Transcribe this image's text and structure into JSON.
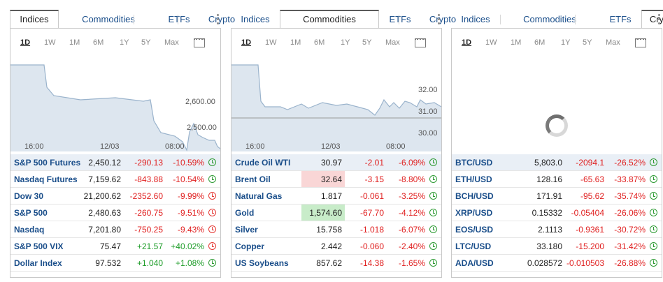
{
  "tabs": [
    "Indices",
    "Commodities",
    "ETFs",
    "Crypto"
  ],
  "periods": [
    "1D",
    "1W",
    "1M",
    "6M",
    "1Y",
    "5Y",
    "Max"
  ],
  "panels": [
    {
      "active_tab": "Indices",
      "chart": {
        "y_labels": [
          "2,600.00",
          "2,500.00"
        ],
        "x_labels": [
          "16:00",
          "12/03",
          "08:00"
        ]
      },
      "rows": [
        {
          "name": "S&P 500 Futures",
          "last": "2,450.12",
          "chg": "-290.13",
          "pct": "-10.59%",
          "dir": "neg",
          "status": "open"
        },
        {
          "name": "Nasdaq Futures",
          "last": "7,159.62",
          "chg": "-843.88",
          "pct": "-10.54%",
          "dir": "neg",
          "status": "open"
        },
        {
          "name": "Dow 30",
          "last": "21,200.62",
          "chg": "-2352.60",
          "pct": "-9.99%",
          "dir": "neg",
          "status": "closed"
        },
        {
          "name": "S&P 500",
          "last": "2,480.63",
          "chg": "-260.75",
          "pct": "-9.51%",
          "dir": "neg",
          "status": "closed"
        },
        {
          "name": "Nasdaq",
          "last": "7,201.80",
          "chg": "-750.25",
          "pct": "-9.43%",
          "dir": "neg",
          "status": "closed"
        },
        {
          "name": "S&P 500 VIX",
          "last": "75.47",
          "chg": "+21.57",
          "pct": "+40.02%",
          "dir": "pos",
          "status": "closed"
        },
        {
          "name": "Dollar Index",
          "last": "97.532",
          "chg": "+1.040",
          "pct": "+1.08%",
          "dir": "pos",
          "status": "open"
        }
      ]
    },
    {
      "active_tab": "Commodities",
      "chart": {
        "y_labels": [
          "32.00",
          "31.00",
          "30.00"
        ],
        "x_labels": [
          "16:00",
          "12/03",
          "08:00"
        ]
      },
      "rows": [
        {
          "name": "Crude Oil WTI",
          "last": "30.97",
          "chg": "-2.01",
          "pct": "-6.09%",
          "dir": "neg",
          "status": "open"
        },
        {
          "name": "Brent Oil",
          "last": "32.64",
          "chg": "-3.15",
          "pct": "-8.80%",
          "dir": "neg",
          "status": "open",
          "flash": "red"
        },
        {
          "name": "Natural Gas",
          "last": "1.817",
          "chg": "-0.061",
          "pct": "-3.25%",
          "dir": "neg",
          "status": "open"
        },
        {
          "name": "Gold",
          "last": "1,574.60",
          "chg": "-67.70",
          "pct": "-4.12%",
          "dir": "neg",
          "status": "open",
          "flash": "green"
        },
        {
          "name": "Silver",
          "last": "15.758",
          "chg": "-1.018",
          "pct": "-6.07%",
          "dir": "neg",
          "status": "open"
        },
        {
          "name": "Copper",
          "last": "2.442",
          "chg": "-0.060",
          "pct": "-2.40%",
          "dir": "neg",
          "status": "open"
        },
        {
          "name": "US Soybeans",
          "last": "857.62",
          "chg": "-14.38",
          "pct": "-1.65%",
          "dir": "neg",
          "status": "open"
        }
      ]
    },
    {
      "active_tab": "Crypto",
      "chart": {
        "y_labels": [],
        "x_labels": []
      },
      "rows": [
        {
          "name": "BTC/USD",
          "last": "5,803.0",
          "chg": "-2094.1",
          "pct": "-26.52%",
          "dir": "neg",
          "status": "open"
        },
        {
          "name": "ETH/USD",
          "last": "128.16",
          "chg": "-65.63",
          "pct": "-33.87%",
          "dir": "neg",
          "status": "open"
        },
        {
          "name": "BCH/USD",
          "last": "171.91",
          "chg": "-95.62",
          "pct": "-35.74%",
          "dir": "neg",
          "status": "open"
        },
        {
          "name": "XRP/USD",
          "last": "0.15332",
          "chg": "-0.05404",
          "pct": "-26.06%",
          "dir": "neg",
          "status": "open"
        },
        {
          "name": "EOS/USD",
          "last": "2.1113",
          "chg": "-0.9361",
          "pct": "-30.72%",
          "dir": "neg",
          "status": "open"
        },
        {
          "name": "LTC/USD",
          "last": "33.180",
          "chg": "-15.200",
          "pct": "-31.42%",
          "dir": "neg",
          "status": "open"
        },
        {
          "name": "ADA/USD",
          "last": "0.028572",
          "chg": "-0.010503",
          "pct": "-26.88%",
          "dir": "neg",
          "status": "open"
        }
      ]
    }
  ],
  "colors": {
    "link": "#1a4e8a",
    "negative": "#e02020",
    "positive": "#1f9d2a",
    "chart_fill": "#dde6ef",
    "chart_line": "#9ab3cc"
  }
}
